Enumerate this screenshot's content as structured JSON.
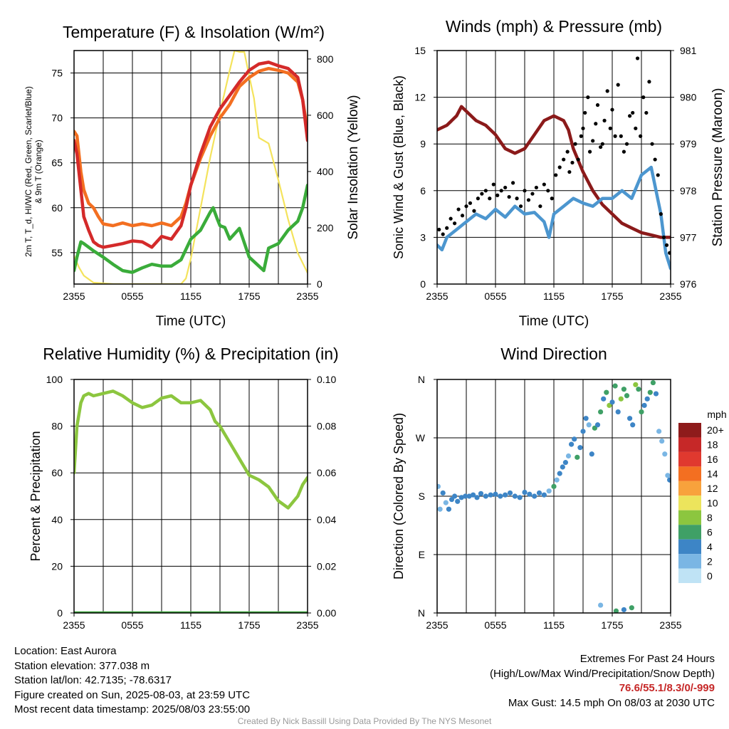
{
  "chart_data": [
    {
      "id": "temp",
      "type": "line",
      "title": "Temperature (F) & Insolation (W/m²)",
      "ylabel": "2m T, T_d, HI/WC (Red, Green, Scarlet/Blue) & 9m T (Orange)",
      "ylabel_lines": [
        "2m T, T_d, HI/WC (Red, Green, Scarlet/Blue)",
        "& 9m T (Orange)"
      ],
      "y2label": "Solar Insolation (Yellow)",
      "xlabel": "Time (UTC)",
      "x_ticks": [
        "2355",
        "0555",
        "1155",
        "1755",
        "2355"
      ],
      "ylim": [
        51.5,
        77.5
      ],
      "y_ticks": [
        55,
        60,
        65,
        70,
        75
      ],
      "y2lim": [
        0,
        830
      ],
      "y2_ticks": [
        0,
        200,
        400,
        600,
        800
      ],
      "grid": true,
      "series": [
        {
          "color": "#f4e35c",
          "axis": "y2",
          "x": [
            0,
            0.5,
            1,
            2,
            4,
            6,
            8,
            10,
            11,
            11.5,
            12,
            13,
            14,
            15,
            16,
            16.5,
            17,
            17.5,
            18,
            18.5,
            19,
            20,
            21,
            22,
            23,
            24
          ],
          "values": [
            100,
            60,
            30,
            5,
            0,
            0,
            0,
            0,
            0,
            20,
            90,
            270,
            450,
            610,
            760,
            830,
            825,
            825,
            740,
            660,
            520,
            500,
            370,
            230,
            110,
            40
          ]
        },
        {
          "color": "#f36f21",
          "axis": "y",
          "x": [
            0,
            0.3,
            0.7,
            1,
            1.5,
            2,
            2.5,
            3,
            4,
            5,
            6,
            7,
            8,
            9,
            10,
            11,
            11.5,
            12,
            13,
            14,
            15,
            16,
            17,
            18,
            19,
            20,
            21,
            22,
            23,
            23.5,
            24
          ],
          "values": [
            68.5,
            68,
            64,
            62,
            60.5,
            60,
            59,
            58.2,
            58,
            58.3,
            58,
            58.2,
            58,
            58.3,
            58,
            59,
            60.5,
            62.5,
            65.5,
            68,
            70,
            71.5,
            73.5,
            74.5,
            75.2,
            75.5,
            75.3,
            75,
            74,
            72,
            68.5
          ]
        },
        {
          "color": "#d42a2a",
          "axis": "y",
          "x": [
            0,
            0.3,
            0.7,
            1,
            1.5,
            2,
            2.5,
            3,
            4,
            5,
            6,
            7,
            8,
            9,
            10,
            11,
            11.5,
            12,
            13,
            14,
            15,
            16,
            17,
            18,
            19,
            20,
            21,
            22,
            23,
            23.5,
            24
          ],
          "values": [
            67.5,
            66,
            62,
            59,
            57.5,
            56.2,
            55.8,
            55.6,
            55.8,
            56,
            56.3,
            56.2,
            55.6,
            56.8,
            56.5,
            58,
            60,
            62.5,
            66,
            69,
            71,
            72.5,
            74,
            75.3,
            76,
            76.2,
            75.8,
            75.5,
            74.5,
            72,
            67.5
          ]
        },
        {
          "color": "#3aac3a",
          "axis": "y",
          "x": [
            0,
            0.3,
            0.7,
            1,
            2,
            3,
            4,
            5,
            6,
            7,
            8,
            9,
            10,
            11,
            12,
            13,
            14,
            14.3,
            14.7,
            15,
            15.5,
            16,
            17,
            18,
            19,
            19.5,
            20,
            21,
            22,
            23,
            23.5,
            24
          ],
          "values": [
            53,
            54.5,
            56.2,
            56,
            55.2,
            54.5,
            53.7,
            53,
            52.8,
            53.3,
            53.7,
            53.5,
            53.5,
            54.2,
            56.5,
            57.5,
            59.5,
            60,
            58.8,
            58,
            57.8,
            56.5,
            57.7,
            54.5,
            53.5,
            53,
            55.5,
            56,
            57.5,
            58.5,
            60,
            62.5
          ]
        }
      ]
    },
    {
      "id": "wind",
      "type": "line",
      "title": "Winds (mph) & Pressure (mb)",
      "ylabel": "Sonic Wind & Gust (Blue, Black)",
      "y2label": "Station Pressure (Maroon)",
      "xlabel": "Time (UTC)",
      "x_ticks": [
        "2355",
        "0555",
        "1155",
        "1755",
        "2355"
      ],
      "ylim": [
        0,
        15
      ],
      "y_ticks": [
        0,
        3,
        6,
        9,
        12,
        15
      ],
      "y2lim": [
        976,
        981
      ],
      "y2_ticks": [
        976,
        977,
        978,
        979,
        980,
        981
      ],
      "grid": true,
      "series": [
        {
          "color": "#8b1a1a",
          "axis": "y2",
          "x": [
            0,
            1,
            2,
            2.5,
            3,
            4,
            5,
            6,
            7,
            8,
            9,
            10,
            11,
            12,
            13,
            13.5,
            14,
            15,
            16,
            17,
            18,
            19,
            20,
            21,
            22,
            23,
            24
          ],
          "values": [
            979.3,
            979.4,
            979.6,
            979.8,
            979.7,
            979.5,
            979.4,
            979.2,
            978.9,
            978.8,
            978.9,
            979.2,
            979.5,
            979.6,
            979.5,
            979.3,
            978.9,
            978.4,
            978.0,
            977.7,
            977.5,
            977.3,
            977.2,
            977.1,
            977.05,
            977.0,
            977.0
          ]
        },
        {
          "color": "#4c96cf",
          "axis": "y",
          "x": [
            0,
            0.5,
            1,
            2,
            3,
            4,
            5,
            6,
            7,
            8,
            9,
            10,
            11,
            11.5,
            12,
            13,
            14,
            15,
            16,
            17,
            18,
            19,
            20,
            21,
            22,
            23,
            23.5,
            24
          ],
          "values": [
            2.5,
            2.2,
            3.0,
            3.5,
            4.0,
            4.5,
            4.2,
            4.8,
            4.3,
            5.0,
            4.5,
            4.6,
            4.0,
            3.0,
            4.5,
            5.0,
            5.5,
            5.2,
            5.0,
            5.5,
            5.5,
            6.0,
            5.5,
            7.0,
            7.5,
            4.5,
            2.0,
            1.0
          ]
        },
        {
          "type": "scatter",
          "color": "#000000",
          "axis": "y",
          "x": [
            0.2,
            0.6,
            1.0,
            1.4,
            1.8,
            2.2,
            2.6,
            3.0,
            3.4,
            3.8,
            4.2,
            4.6,
            5.0,
            5.4,
            5.8,
            6.2,
            6.6,
            7.0,
            7.4,
            7.8,
            8.2,
            8.6,
            9.0,
            9.4,
            9.8,
            10.2,
            10.6,
            11.0,
            11.4,
            11.8,
            12.2,
            12.6,
            13.0,
            13.4,
            13.6,
            13.9,
            14.2,
            14.5,
            14.8,
            15.0,
            15.2,
            15.5,
            15.7,
            16.0,
            16.3,
            16.5,
            16.8,
            17.0,
            17.2,
            17.5,
            17.8,
            18.0,
            18.3,
            18.6,
            18.9,
            19.2,
            19.5,
            19.8,
            20.1,
            20.4,
            20.6,
            20.9,
            21.2,
            21.5,
            21.8,
            22.1,
            22.4,
            22.7,
            23.0,
            23.3,
            23.6,
            23.9
          ],
          "values": [
            3.5,
            3.2,
            3.6,
            4.2,
            3.9,
            4.8,
            4.4,
            5.0,
            5.2,
            4.7,
            5.5,
            5.8,
            6.0,
            5.5,
            6.4,
            5.7,
            6.0,
            6.2,
            5.6,
            6.5,
            5.5,
            5.0,
            6.0,
            5.4,
            5.8,
            6.2,
            5.0,
            6.4,
            6.0,
            5.5,
            7.0,
            7.5,
            8.0,
            8.5,
            7.2,
            7.8,
            9.0,
            8.0,
            9.5,
            10.0,
            11.0,
            12.0,
            8.5,
            9.2,
            10.3,
            11.5,
            8.8,
            9.0,
            10.5,
            12.4,
            10.0,
            11.2,
            9.5,
            12.8,
            9.5,
            8.5,
            9.0,
            10.8,
            11.0,
            10.0,
            14.5,
            9.5,
            12.0,
            11.0,
            13.0,
            9.0,
            8.0,
            7.0,
            4.5,
            3.0,
            2.5,
            2.0
          ]
        }
      ]
    },
    {
      "id": "rh",
      "type": "line",
      "title": "Relative Humidity (%) & Precipitation (in)",
      "ylabel": "Percent & Precipitation",
      "x_ticks": [
        "2355",
        "0555",
        "1155",
        "1755",
        "2355"
      ],
      "ylim": [
        0,
        100
      ],
      "y_ticks": [
        0,
        20,
        40,
        60,
        80,
        100
      ],
      "y2lim": [
        0,
        0.1
      ],
      "y2_ticks": [
        "0.00",
        "0.02",
        "0.04",
        "0.06",
        "0.08",
        "0.10"
      ],
      "grid": true,
      "series": [
        {
          "color": "#8cc63f",
          "axis": "y",
          "x": [
            0,
            0.3,
            0.7,
            1,
            1.5,
            2,
            3,
            4,
            5,
            6,
            7,
            8,
            9,
            10,
            11,
            12,
            13,
            14,
            14.5,
            15,
            16,
            17,
            18,
            19,
            20,
            21,
            22,
            23,
            23.5,
            24
          ],
          "values": [
            60,
            80,
            90,
            93,
            94,
            93,
            94,
            95,
            93,
            90,
            88,
            89,
            92,
            93,
            90,
            90,
            91,
            87,
            82,
            80,
            73,
            66,
            59,
            57,
            54,
            48,
            45,
            50,
            55,
            58
          ]
        },
        {
          "color": "#3fa63f",
          "axis": "y",
          "x": [
            0,
            24
          ],
          "values": [
            0,
            0
          ]
        }
      ]
    },
    {
      "id": "wdir",
      "type": "scatter",
      "title": "Wind Direction",
      "ylabel": "Direction (Colored By Speed)",
      "x_ticks": [
        "2355",
        "0555",
        "1155",
        "1755",
        "2355"
      ],
      "y_ticks": [
        "N",
        "E",
        "S",
        "W",
        "N"
      ],
      "ylim": [
        0,
        360
      ],
      "grid": true,
      "legend": {
        "title": "mph",
        "labels": [
          "20+",
          "18",
          "16",
          "14",
          "12",
          "10",
          "8",
          "6",
          "4",
          "2",
          "0"
        ],
        "colors": [
          "#8e1b1b",
          "#c62828",
          "#e0392f",
          "#f36f21",
          "#f8a23c",
          "#ece45c",
          "#8cc63f",
          "#3fa066",
          "#3d85c6",
          "#7ab6e4",
          "#bfe3f5"
        ],
        "placement": "right"
      },
      "series": [
        {
          "x": [
            0.1,
            0.3,
            0.6,
            0.9,
            1.2,
            1.5,
            1.8,
            2.1,
            2.5,
            2.9,
            3.3,
            3.7,
            4.1,
            4.5,
            5.0,
            5.5,
            6.0,
            6.5,
            7.0,
            7.5,
            8.0,
            8.5,
            9.0,
            9.5,
            10.0,
            10.5,
            11.0,
            11.5,
            12.0,
            12.3,
            12.6,
            12.9,
            13.2,
            13.5,
            13.8,
            14.1,
            14.4,
            14.7,
            15.0,
            15.3,
            15.6,
            15.9,
            16.2,
            16.5,
            16.8,
            17.1,
            17.4,
            17.7,
            18.0,
            18.3,
            18.6,
            18.9,
            19.2,
            19.5,
            19.8,
            20.1,
            20.4,
            20.7,
            21.0,
            21.3,
            21.6,
            21.9,
            22.2,
            22.5,
            22.8,
            23.1,
            23.4,
            23.7,
            23.9
          ],
          "values": [
            195,
            160,
            185,
            170,
            160,
            175,
            180,
            172,
            178,
            180,
            180,
            182,
            178,
            184,
            180,
            182,
            183,
            180,
            182,
            185,
            180,
            178,
            186,
            183,
            180,
            185,
            182,
            188,
            195,
            205,
            215,
            225,
            232,
            242,
            260,
            268,
            240,
            255,
            280,
            300,
            290,
            245,
            285,
            290,
            310,
            330,
            340,
            320,
            325,
            350,
            310,
            330,
            345,
            335,
            300,
            290,
            352,
            345,
            310,
            320,
            330,
            340,
            355,
            338,
            280,
            265,
            245,
            212,
            205
          ],
          "speeds": [
            2,
            2,
            3,
            2,
            3,
            3,
            4,
            4,
            3,
            4,
            4,
            3,
            4,
            4,
            3,
            4,
            4,
            4,
            3,
            4,
            4,
            4,
            3,
            4,
            4,
            3,
            4,
            2,
            6,
            2,
            4,
            3,
            4,
            2,
            4,
            4,
            6,
            3,
            4,
            4,
            2,
            4,
            6,
            4,
            6,
            4,
            6,
            8,
            4,
            6,
            4,
            8,
            6,
            6,
            4,
            4,
            8,
            6,
            6,
            4,
            3,
            6,
            6,
            3,
            2,
            1,
            1,
            2,
            4
          ]
        },
        {
          "x": [
            16.8,
            18.4,
            19.2,
            20.0
          ],
          "values": [
            12,
            3,
            5,
            8
          ],
          "speeds": [
            2,
            6,
            4,
            6
          ]
        }
      ]
    }
  ],
  "info": {
    "location": "Location: East Aurora",
    "elevation": "Station elevation: 377.038 m",
    "latlon": "Station lat/lon: 42.7135; -78.6317",
    "created": "Figure created on Sun, 2025-08-03, at 23:59 UTC",
    "recent": "Most recent data timestamp: 2025/08/03 23:55:00",
    "extremes_title": "Extremes For Past 24 Hours",
    "extremes_sub": "(High/Low/Max Wind/Precipitation/Snow Depth)",
    "extremes_values": "76.6/55.1/8.3/0/-999",
    "max_gust": "Max Gust: 14.5 mph On 08/03 at 2030 UTC",
    "credit": "Created By Nick Bassill Using Data Provided By The NYS Mesonet"
  }
}
